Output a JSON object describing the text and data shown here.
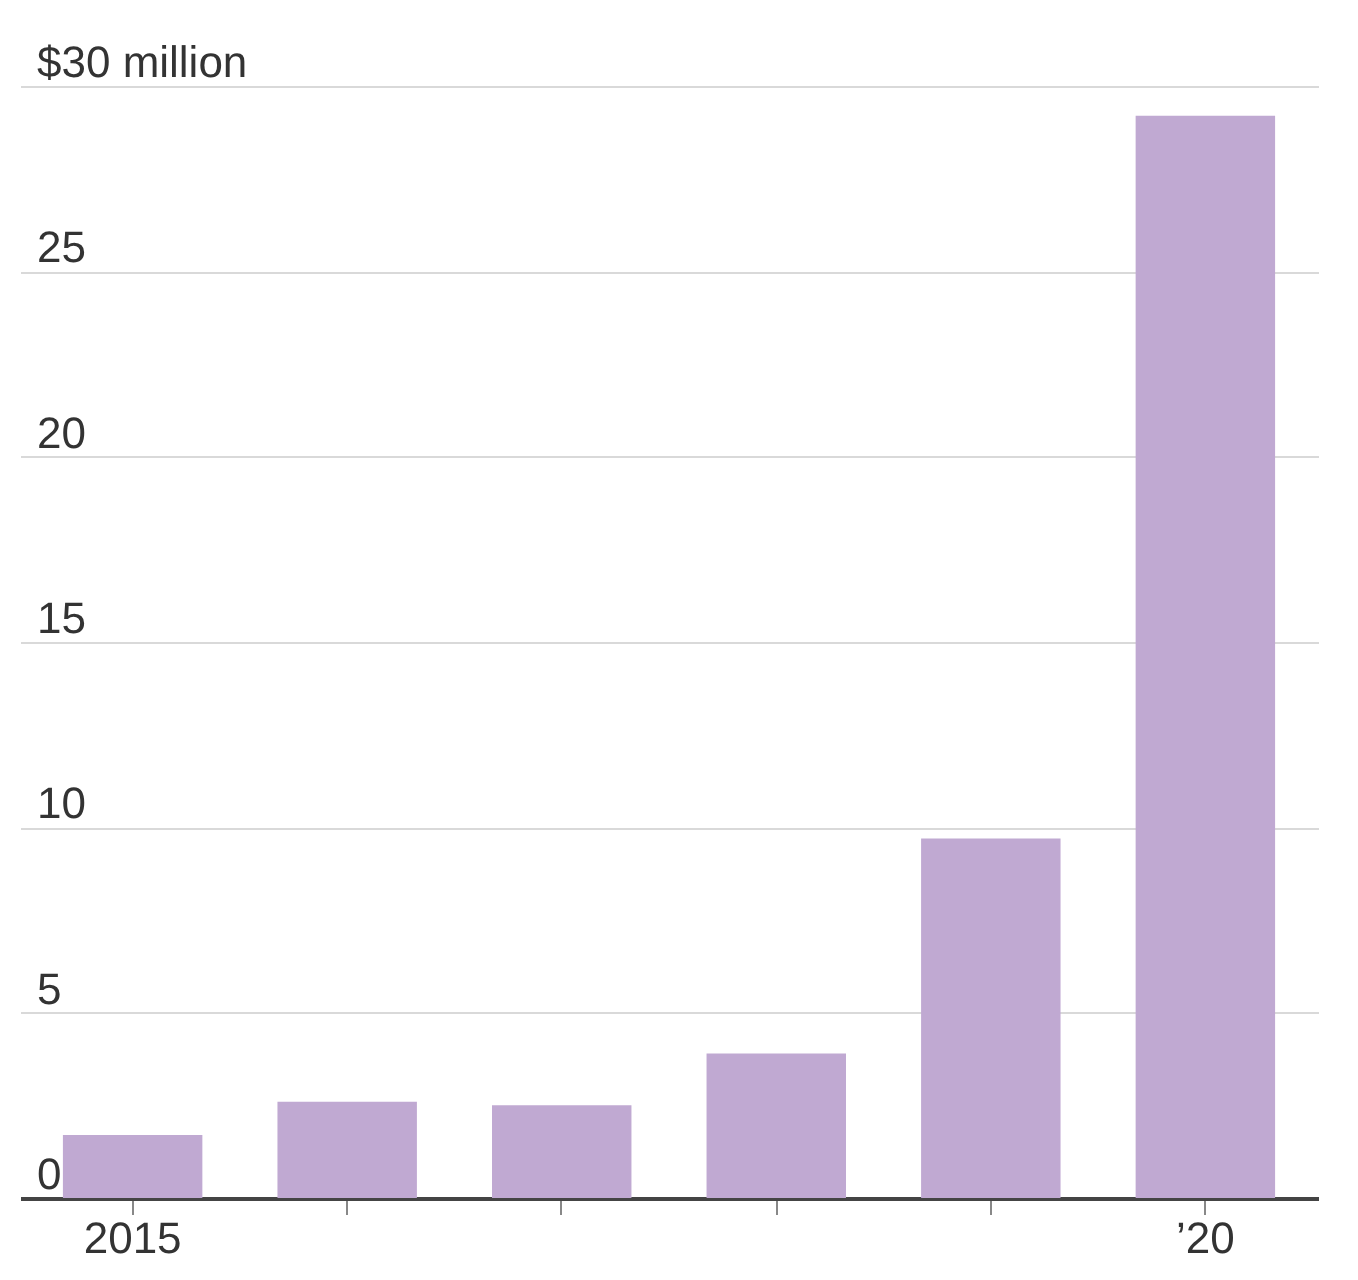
{
  "chart_data": {
    "type": "bar",
    "categories": [
      "2015",
      null,
      null,
      null,
      null,
      "’20"
    ],
    "values": [
      1.7,
      2.6,
      2.5,
      3.9,
      9.7,
      29.2
    ],
    "color": "#c0a9d2",
    "ylim": [
      0,
      30
    ],
    "yticks": [
      0,
      5,
      10,
      15,
      20,
      25,
      {
        "value": 30,
        "label": "$30 million"
      }
    ],
    "grid": "y"
  }
}
